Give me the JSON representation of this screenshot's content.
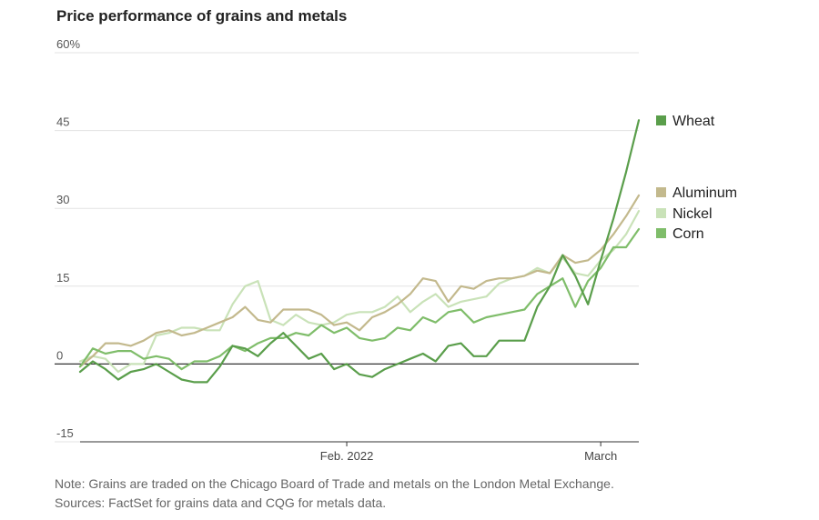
{
  "chart_data": {
    "type": "line",
    "title": "Price performance of grains and metals",
    "xlabel": "",
    "ylabel": "",
    "ylim": [
      -15,
      60
    ],
    "y_ticks": [
      {
        "value": 60,
        "label": "60%"
      },
      {
        "value": 45,
        "label": "45"
      },
      {
        "value": 30,
        "label": "30"
      },
      {
        "value": 15,
        "label": "15"
      },
      {
        "value": 0,
        "label": "0"
      },
      {
        "value": -15,
        "label": "-15"
      }
    ],
    "x": [
      "2022-01-03",
      "2022-01-04",
      "2022-01-05",
      "2022-01-06",
      "2022-01-07",
      "2022-01-10",
      "2022-01-11",
      "2022-01-12",
      "2022-01-13",
      "2022-01-14",
      "2022-01-17",
      "2022-01-18",
      "2022-01-19",
      "2022-01-20",
      "2022-01-21",
      "2022-01-24",
      "2022-01-25",
      "2022-01-26",
      "2022-01-27",
      "2022-01-28",
      "2022-01-31",
      "2022-02-01",
      "2022-02-02",
      "2022-02-03",
      "2022-02-04",
      "2022-02-07",
      "2022-02-08",
      "2022-02-09",
      "2022-02-10",
      "2022-02-11",
      "2022-02-14",
      "2022-02-15",
      "2022-02-16",
      "2022-02-17",
      "2022-02-18",
      "2022-02-21",
      "2022-02-22",
      "2022-02-23",
      "2022-02-24",
      "2022-02-25",
      "2022-02-28",
      "2022-03-01",
      "2022-03-02",
      "2022-03-03",
      "2022-03-04"
    ],
    "x_ticks": [
      {
        "value": "2022-02-01",
        "label": "Feb. 2022"
      },
      {
        "value": "2022-03-01",
        "label": "March"
      }
    ],
    "series": [
      {
        "name": "Wheat",
        "color": "#5a9e4b",
        "values": [
          -1.5,
          0.5,
          -1,
          -3,
          -1.5,
          -1,
          0,
          -1.5,
          -3,
          -3.5,
          -3.5,
          -0.5,
          3.5,
          3,
          1.5,
          4,
          6,
          3.5,
          1,
          2,
          -1,
          0,
          -2,
          -2.5,
          -1,
          0,
          1,
          2,
          0.5,
          3.5,
          4,
          1.5,
          1.5,
          4.5,
          4.5,
          4.5,
          11,
          15,
          21,
          17,
          11.5,
          20,
          28,
          37,
          47
        ]
      },
      {
        "name": "Aluminum",
        "color": "#c3b98d",
        "values": [
          -0.5,
          1.5,
          4,
          4,
          3.5,
          4.5,
          6,
          6.5,
          5.5,
          6,
          7,
          8,
          9,
          11,
          8.5,
          8,
          10.5,
          10.5,
          10.5,
          9.5,
          7.5,
          8,
          6.5,
          9,
          10,
          11.5,
          13.5,
          16.5,
          16,
          12,
          15,
          14.5,
          16,
          16.5,
          16.5,
          17,
          18,
          17.5,
          21,
          19.5,
          20,
          22,
          25,
          28.5,
          32.5
        ]
      },
      {
        "name": "Nickel",
        "color": "#c9e2b8",
        "values": [
          0.5,
          1.5,
          1,
          -1.5,
          0,
          0,
          5.5,
          6,
          7,
          7,
          6.5,
          6.5,
          11.5,
          15,
          16,
          8.5,
          7.5,
          9.5,
          8,
          7.5,
          8,
          9.5,
          10,
          10,
          11,
          13,
          10,
          12,
          13.5,
          11,
          12,
          12.5,
          13,
          15.5,
          16.5,
          17,
          18.5,
          17.5,
          20.5,
          17.5,
          17,
          20,
          22,
          25,
          29.5
        ]
      },
      {
        "name": "Corn",
        "color": "#7fbd6a",
        "values": [
          -0.5,
          3,
          2,
          2.5,
          2.5,
          1,
          1.5,
          1,
          -1,
          0.5,
          0.5,
          1.5,
          3.5,
          2.5,
          4,
          5,
          5,
          6,
          5.5,
          7.5,
          6,
          7,
          5,
          4.5,
          5,
          7,
          6.5,
          9,
          8,
          10,
          10.5,
          8,
          9,
          9.5,
          10,
          10.5,
          13.5,
          15,
          16.5,
          11,
          16,
          18.5,
          22.5,
          22.5,
          26
        ]
      }
    ],
    "grid": true,
    "legend_placement": "right"
  },
  "notes": {
    "line1": "Note: Grains are traded on the Chicago Board of Trade and metals on the London Metal Exchange.",
    "line2": "Sources: FactSet for grains data and CQG for metals data."
  }
}
